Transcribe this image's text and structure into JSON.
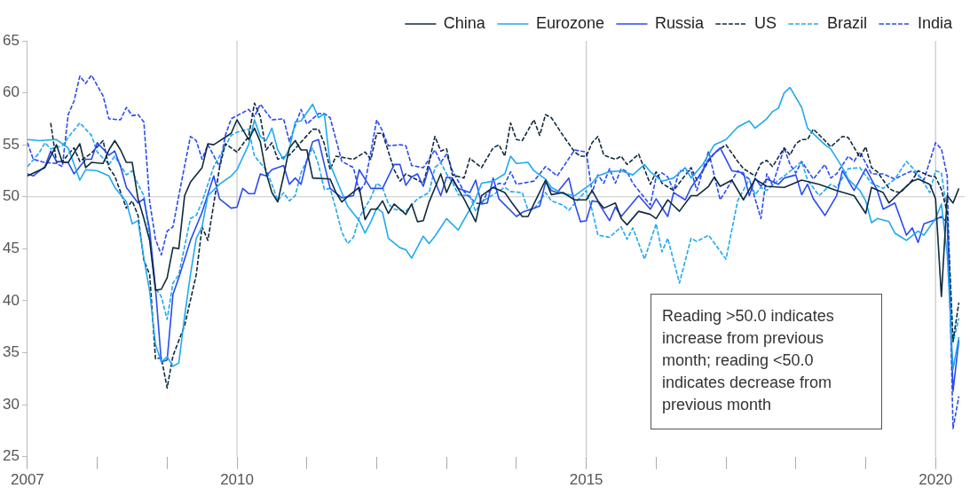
{
  "chart_data": {
    "type": "line",
    "xlim": [
      "2007-01",
      "2020-06"
    ],
    "ylim": [
      25,
      65
    ],
    "xticks": [
      {
        "value": "2007",
        "label": "2007"
      },
      {
        "value": "2008",
        "label": null
      },
      {
        "value": "2009",
        "label": null
      },
      {
        "value": "2010",
        "label": "2010"
      },
      {
        "value": "2011",
        "label": null
      },
      {
        "value": "2012",
        "label": null
      },
      {
        "value": "2013",
        "label": null
      },
      {
        "value": "2014",
        "label": null
      },
      {
        "value": "2015",
        "label": "2015"
      },
      {
        "value": "2016",
        "label": null
      },
      {
        "value": "2017",
        "label": null
      },
      {
        "value": "2018",
        "label": null
      },
      {
        "value": "2019",
        "label": null
      },
      {
        "value": "2020",
        "label": "2020"
      }
    ],
    "yticks": [
      25,
      30,
      35,
      40,
      45,
      50,
      55,
      60,
      65
    ],
    "grid": false,
    "legend": "top right",
    "marker": "none",
    "ref_lines": [
      {
        "axis": "y",
        "value": 50,
        "color": "#c8c8c8"
      },
      {
        "axis": "x",
        "value": "2010",
        "color": "#c8c8c8"
      },
      {
        "axis": "x",
        "value": "2015",
        "color": "#c8c8c8"
      },
      {
        "axis": "x",
        "value": "2020",
        "color": "#c8c8c8"
      }
    ],
    "annotations": [
      "Reading >50.0 indicates increase from previous month; reading <50.0 indicates decrease from previous month"
    ],
    "series": [
      {
        "name": "China",
        "color": "#0f2a3d",
        "line_style": "solid",
        "x": [
          "2007-01",
          "2007-04",
          "2007-06",
          "2007-07",
          "2007-08",
          "2007-10",
          "2007-11",
          "2007-12",
          "2008-02",
          "2008-03",
          "2008-04",
          "2008-05",
          "2008-06",
          "2008-07",
          "2008-08",
          "2008-09",
          "2008-10",
          "2008-11",
          "2008-12",
          "2009-01",
          "2009-02",
          "2009-03",
          "2009-04",
          "2009-05",
          "2009-07",
          "2009-08",
          "2009-09",
          "2009-12",
          "2010-01",
          "2010-03",
          "2010-04",
          "2010-05",
          "2010-06",
          "2010-07",
          "2010-08",
          "2010-09",
          "2010-10",
          "2010-11",
          "2010-12",
          "2011-01",
          "2011-02",
          "2011-05",
          "2011-06",
          "2011-07",
          "2011-08",
          "2011-10",
          "2011-11",
          "2011-12",
          "2012-01",
          "2012-02",
          "2012-03",
          "2012-04",
          "2012-06",
          "2012-07",
          "2012-08",
          "2012-09",
          "2012-10",
          "2012-12",
          "2013-01",
          "2013-02",
          "2013-04",
          "2013-06",
          "2013-07",
          "2013-09",
          "2013-11",
          "2013-12",
          "2014-02",
          "2014-03",
          "2014-04",
          "2014-06",
          "2014-07",
          "2014-09",
          "2014-11",
          "2015-01",
          "2015-02",
          "2015-03",
          "2015-04",
          "2015-06",
          "2015-07",
          "2015-08",
          "2015-10",
          "2015-12",
          "2016-01",
          "2016-03",
          "2016-05",
          "2016-07",
          "2016-08",
          "2016-10",
          "2016-11",
          "2016-12",
          "2017-02",
          "2017-04",
          "2017-06",
          "2017-08",
          "2017-11",
          "2018-02",
          "2018-05",
          "2018-08",
          "2018-11",
          "2019-01",
          "2019-02",
          "2019-04",
          "2019-05",
          "2019-07",
          "2019-09",
          "2019-10",
          "2019-12",
          "2020-01",
          "2020-02",
          "2020-03",
          "2020-04",
          "2020-05"
        ],
        "values": [
          52.0,
          52.8,
          55.0,
          53.3,
          53.3,
          55.1,
          52.8,
          53.3,
          53.2,
          54.5,
          55.4,
          54.5,
          53.3,
          53.3,
          49.8,
          47.9,
          45.8,
          41.0,
          41.1,
          42.2,
          45.1,
          45.0,
          50.1,
          51.4,
          52.8,
          55.1,
          55.0,
          56.1,
          57.4,
          55.5,
          56.6,
          55.3,
          52.3,
          50.4,
          49.5,
          52.0,
          54.7,
          55.4,
          54.5,
          54.5,
          51.8,
          51.7,
          50.4,
          49.5,
          50.0,
          50.9,
          47.8,
          48.8,
          48.8,
          49.6,
          48.4,
          49.3,
          48.3,
          49.3,
          47.6,
          47.7,
          49.5,
          52.2,
          50.4,
          51.7,
          49.8,
          47.6,
          50.1,
          50.9,
          50.4,
          49.6,
          48.1,
          48.1,
          49.3,
          51.6,
          50.2,
          50.4,
          49.7,
          49.7,
          50.6,
          49.6,
          48.9,
          49.4,
          47.9,
          47.3,
          48.6,
          48.3,
          47.9,
          49.7,
          48.6,
          50.1,
          50.1,
          51.0,
          51.9,
          51.0,
          51.6,
          49.7,
          51.7,
          51.0,
          50.9,
          51.6,
          51.2,
          50.6,
          50.1,
          48.4,
          50.9,
          50.4,
          49.4,
          50.5,
          51.5,
          51.7,
          51.2,
          49.8,
          40.4,
          50.1,
          49.4,
          50.8
        ]
      },
      {
        "name": "Eurozone",
        "color": "#1fa9f0",
        "line_style": "solid",
        "x": [
          "2007-01",
          "2007-03",
          "2007-06",
          "2007-08",
          "2007-10",
          "2007-11",
          "2008-01",
          "2008-03",
          "2008-04",
          "2008-06",
          "2008-07",
          "2008-08",
          "2008-09",
          "2008-10",
          "2008-11",
          "2008-12",
          "2009-01",
          "2009-02",
          "2009-03",
          "2009-04",
          "2009-05",
          "2009-06",
          "2009-07",
          "2009-08",
          "2009-10",
          "2009-12",
          "2010-01",
          "2010-03",
          "2010-04",
          "2010-05",
          "2010-06",
          "2010-07",
          "2010-08",
          "2010-09",
          "2010-10",
          "2010-11",
          "2010-12",
          "2011-02",
          "2011-03",
          "2011-04",
          "2011-05",
          "2011-07",
          "2011-08",
          "2011-10",
          "2011-11",
          "2011-12",
          "2012-01",
          "2012-02",
          "2012-03",
          "2012-05",
          "2012-06",
          "2012-07",
          "2012-09",
          "2012-10",
          "2012-11",
          "2013-01",
          "2013-03",
          "2013-06",
          "2013-07",
          "2013-09",
          "2013-11",
          "2013-12",
          "2014-01",
          "2014-03",
          "2014-04",
          "2014-06",
          "2014-07",
          "2014-09",
          "2014-11",
          "2015-01",
          "2015-02",
          "2015-03",
          "2015-05",
          "2015-07",
          "2015-09",
          "2015-11",
          "2015-12",
          "2016-02",
          "2016-04",
          "2016-06",
          "2016-07",
          "2016-09",
          "2016-11",
          "2017-01",
          "2017-03",
          "2017-05",
          "2017-06",
          "2017-08",
          "2017-09",
          "2017-10",
          "2017-11",
          "2017-12",
          "2018-02",
          "2018-03",
          "2018-06",
          "2018-07",
          "2018-09",
          "2018-10",
          "2018-12",
          "2019-01",
          "2019-02",
          "2019-03",
          "2019-05",
          "2019-06",
          "2019-08",
          "2019-10",
          "2019-11",
          "2020-01",
          "2020-02",
          "2020-03",
          "2020-04",
          "2020-05"
        ],
        "values": [
          55.5,
          55.4,
          55.5,
          54.7,
          51.6,
          52.6,
          52.5,
          52.0,
          50.9,
          49.5,
          47.4,
          47.7,
          44.1,
          40.9,
          35.8,
          34.1,
          34.6,
          33.7,
          34.0,
          38.5,
          42.5,
          46.0,
          47.1,
          50.1,
          51.2,
          52.0,
          52.6,
          55.0,
          57.4,
          55.8,
          55.4,
          56.6,
          54.5,
          53.6,
          54.6,
          57.2,
          57.3,
          58.9,
          57.6,
          58.0,
          53.1,
          50.4,
          49.1,
          47.7,
          46.5,
          47.6,
          48.9,
          48.5,
          46.0,
          45.1,
          44.9,
          44.1,
          46.2,
          45.5,
          46.2,
          47.9,
          46.8,
          49.8,
          51.3,
          51.5,
          52.2,
          53.9,
          53.2,
          53.3,
          52.5,
          51.7,
          50.9,
          50.3,
          50.1,
          50.9,
          51.3,
          52.0,
          52.4,
          52.5,
          52.1,
          53.1,
          52.4,
          51.5,
          51.8,
          52.8,
          51.8,
          53.1,
          55.0,
          55.5,
          56.7,
          57.3,
          56.6,
          57.5,
          58.2,
          58.5,
          60.0,
          60.5,
          58.6,
          56.6,
          55.0,
          54.6,
          52.8,
          51.7,
          50.6,
          49.6,
          47.5,
          47.9,
          47.6,
          46.5,
          45.8,
          46.7,
          46.3,
          47.9,
          49.3,
          44.5,
          33.4,
          36.5
        ]
      },
      {
        "name": "Russia",
        "color": "#2a4bf0",
        "line_style": "solid",
        "x": [
          "2007-01",
          "2007-02",
          "2007-04",
          "2007-05",
          "2007-06",
          "2007-08",
          "2007-09",
          "2007-11",
          "2007-12",
          "2008-01",
          "2008-03",
          "2008-04",
          "2008-05",
          "2008-06",
          "2008-08",
          "2008-09",
          "2008-10",
          "2008-11",
          "2008-12",
          "2009-01",
          "2009-02",
          "2009-03",
          "2009-05",
          "2009-07",
          "2009-09",
          "2009-10",
          "2009-12",
          "2010-01",
          "2010-02",
          "2010-03",
          "2010-04",
          "2010-05",
          "2010-06",
          "2010-07",
          "2010-09",
          "2010-10",
          "2010-11",
          "2010-12",
          "2011-01",
          "2011-02",
          "2011-03",
          "2011-04",
          "2011-05",
          "2011-07",
          "2011-09",
          "2011-10",
          "2011-12",
          "2012-02",
          "2012-04",
          "2012-05",
          "2012-06",
          "2012-07",
          "2012-08",
          "2012-09",
          "2012-10",
          "2012-12",
          "2013-01",
          "2013-02",
          "2013-03",
          "2013-05",
          "2013-06",
          "2013-07",
          "2013-08",
          "2013-09",
          "2013-10",
          "2014-01",
          "2014-02",
          "2014-05",
          "2014-06",
          "2014-07",
          "2014-08",
          "2014-10",
          "2014-11",
          "2014-12",
          "2015-01",
          "2015-02",
          "2015-03",
          "2015-05",
          "2015-06",
          "2015-07",
          "2015-10",
          "2015-12",
          "2016-01",
          "2016-03",
          "2016-04",
          "2016-06",
          "2016-07",
          "2016-09",
          "2016-10",
          "2016-12",
          "2017-02",
          "2017-04",
          "2017-05",
          "2017-06",
          "2017-07",
          "2017-08",
          "2017-10",
          "2017-11",
          "2018-01",
          "2018-02",
          "2018-03",
          "2018-04",
          "2018-06",
          "2018-08",
          "2018-09",
          "2018-11",
          "2019-01",
          "2019-03",
          "2019-04",
          "2019-06",
          "2019-08",
          "2019-09",
          "2019-10",
          "2019-11",
          "2020-01",
          "2020-02",
          "2020-03",
          "2020-04",
          "2020-05"
        ],
        "values": [
          52.2,
          52.0,
          52.9,
          54.4,
          53.4,
          53.3,
          52.2,
          53.6,
          53.6,
          55.2,
          54.0,
          54.4,
          52.9,
          50.9,
          49.4,
          49.8,
          46.8,
          41.2,
          34.1,
          34.3,
          40.6,
          42.2,
          45.8,
          48.5,
          52.0,
          49.8,
          48.9,
          49.0,
          50.8,
          50.3,
          50.3,
          52.2,
          52.0,
          52.6,
          53.0,
          51.2,
          51.8,
          51.2,
          53.5,
          55.3,
          55.5,
          53.1,
          50.8,
          49.9,
          50.1,
          52.6,
          50.8,
          50.8,
          53.1,
          53.1,
          51.1,
          51.9,
          52.2,
          51.0,
          52.9,
          50.1,
          51.9,
          51.8,
          50.8,
          50.4,
          51.6,
          49.3,
          49.4,
          51.8,
          49.8,
          48.1,
          48.5,
          49.1,
          51.4,
          50.6,
          50.4,
          51.8,
          49.4,
          47.6,
          47.7,
          49.6,
          49.5,
          47.7,
          49.0,
          48.1,
          50.1,
          48.8,
          49.8,
          48.1,
          50.4,
          49.7,
          50.9,
          52.5,
          53.6,
          54.7,
          52.5,
          52.3,
          50.1,
          51.8,
          51.0,
          51.7,
          51.2,
          51.8,
          52.1,
          50.2,
          51.2,
          49.8,
          48.2,
          50.1,
          52.5,
          50.6,
          52.7,
          50.6,
          48.8,
          49.4,
          46.3,
          47.0,
          45.6,
          47.4,
          47.8,
          48.1,
          47.5,
          31.3,
          36.2
        ]
      },
      {
        "name": "US",
        "color": "#0f2a3d",
        "line_style": "dashed",
        "x": [
          "2007-05",
          "2007-06",
          "2007-07",
          "2007-09",
          "2007-10",
          "2007-12",
          "2008-02",
          "2008-03",
          "2008-04",
          "2008-06",
          "2008-07",
          "2008-08",
          "2008-09",
          "2008-10",
          "2008-11",
          "2008-12",
          "2009-01",
          "2009-02",
          "2009-04",
          "2009-06",
          "2009-07",
          "2009-08",
          "2009-10",
          "2009-11",
          "2010-01",
          "2010-03",
          "2010-04",
          "2010-05",
          "2010-06",
          "2010-07",
          "2010-08",
          "2010-10",
          "2011-02",
          "2011-03",
          "2011-04",
          "2011-05",
          "2011-06",
          "2011-09",
          "2011-11",
          "2011-12",
          "2012-01",
          "2012-02",
          "2012-04",
          "2012-05",
          "2012-06",
          "2012-09",
          "2012-10",
          "2012-11",
          "2012-12",
          "2013-01",
          "2013-02",
          "2013-04",
          "2013-05",
          "2013-07",
          "2013-09",
          "2013-10",
          "2013-11",
          "2013-12",
          "2014-01",
          "2014-02",
          "2014-04",
          "2014-05",
          "2014-06",
          "2014-07",
          "2014-09",
          "2014-11",
          "2014-12",
          "2015-01",
          "2015-02",
          "2015-03",
          "2015-04",
          "2015-06",
          "2015-07",
          "2015-08",
          "2015-10",
          "2015-12",
          "2016-01",
          "2016-02",
          "2016-04",
          "2016-07",
          "2016-08",
          "2016-10",
          "2016-11",
          "2017-01",
          "2017-03",
          "2017-04",
          "2017-06",
          "2017-07",
          "2017-08",
          "2017-09",
          "2017-11",
          "2017-12",
          "2018-01",
          "2018-02",
          "2018-03",
          "2018-04",
          "2018-06",
          "2018-07",
          "2018-09",
          "2018-10",
          "2018-12",
          "2019-01",
          "2019-02",
          "2019-03",
          "2019-05",
          "2019-06",
          "2019-07",
          "2019-09",
          "2019-10",
          "2019-12",
          "2020-01",
          "2020-02",
          "2020-03",
          "2020-04",
          "2020-05"
        ],
        "values": [
          57.1,
          53.3,
          53.4,
          54.7,
          53.4,
          54.2,
          55.4,
          52.8,
          52.0,
          48.9,
          49.6,
          48.2,
          43.9,
          42.5,
          34.4,
          34.5,
          31.6,
          34.7,
          37.6,
          42.5,
          47.1,
          45.8,
          52.8,
          55.1,
          54.3,
          55.8,
          59.0,
          57.7,
          54.5,
          55.2,
          53.6,
          54.0,
          56.5,
          56.5,
          55.1,
          52.6,
          53.9,
          53.6,
          54.3,
          53.6,
          56.1,
          56.1,
          52.6,
          51.5,
          52.2,
          51.3,
          53.3,
          55.8,
          54.4,
          54.6,
          52.1,
          51.8,
          53.7,
          52.8,
          54.7,
          55.0,
          53.9,
          57.1,
          55.5,
          55.4,
          57.4,
          55.9,
          57.9,
          57.6,
          55.9,
          54.3,
          53.9,
          53.9,
          55.2,
          55.8,
          54.0,
          53.6,
          53.9,
          53.1,
          54.1,
          51.2,
          52.4,
          51.3,
          50.6,
          52.8,
          51.6,
          53.4,
          54.2,
          55.0,
          53.4,
          52.7,
          52.0,
          53.2,
          53.5,
          52.9,
          54.7,
          54.0,
          55.1,
          55.5,
          55.5,
          56.5,
          55.4,
          54.8,
          55.8,
          55.7,
          53.8,
          54.8,
          52.8,
          52.4,
          50.8,
          50.5,
          50.4,
          51.6,
          52.5,
          52.0,
          51.9,
          50.7,
          48.5,
          36.1,
          39.8
        ]
      },
      {
        "name": "Brazil",
        "color": "#1fa9f0",
        "line_style": "dashed",
        "x": [
          "2007-01",
          "2007-03",
          "2007-04",
          "2007-05",
          "2007-07",
          "2007-08",
          "2007-10",
          "2007-12",
          "2008-01",
          "2008-03",
          "2008-04",
          "2008-06",
          "2008-07",
          "2008-08",
          "2008-09",
          "2008-10",
          "2008-11",
          "2008-12",
          "2009-01",
          "2009-02",
          "2009-03",
          "2009-05",
          "2009-06",
          "2009-07",
          "2009-09",
          "2009-12",
          "2010-01",
          "2010-03",
          "2010-04",
          "2010-06",
          "2010-07",
          "2010-08",
          "2010-09",
          "2010-10",
          "2010-11",
          "2010-12",
          "2011-02",
          "2011-03",
          "2011-04",
          "2011-05",
          "2011-06",
          "2011-07",
          "2011-08",
          "2011-09",
          "2011-10",
          "2011-12",
          "2012-01",
          "2012-02",
          "2012-03",
          "2012-04",
          "2012-06",
          "2012-08",
          "2012-10",
          "2012-11",
          "2012-12",
          "2013-01",
          "2013-02",
          "2013-03",
          "2013-05",
          "2013-06",
          "2013-07",
          "2013-09",
          "2013-11",
          "2013-12",
          "2014-02",
          "2014-03",
          "2014-04",
          "2014-06",
          "2014-07",
          "2014-09",
          "2014-10",
          "2015-01",
          "2015-02",
          "2015-03",
          "2015-05",
          "2015-07",
          "2015-08",
          "2015-09",
          "2015-11",
          "2016-01",
          "2016-02",
          "2016-03",
          "2016-05",
          "2016-07",
          "2016-08",
          "2016-10",
          "2017-01",
          "2017-03",
          "2017-05",
          "2017-06",
          "2017-07",
          "2017-08",
          "2017-10",
          "2017-11",
          "2018-01",
          "2018-02",
          "2018-03",
          "2018-05",
          "2018-07",
          "2018-08",
          "2018-10",
          "2018-12",
          "2019-02",
          "2019-04",
          "2019-06",
          "2019-08",
          "2019-10",
          "2019-12",
          "2020-01",
          "2020-02",
          "2020-03",
          "2020-04",
          "2020-05"
        ],
        "values": [
          52.9,
          54.2,
          55.2,
          54.6,
          54.9,
          55.7,
          57.1,
          55.9,
          54.3,
          53.1,
          53.9,
          52.1,
          52.5,
          51.2,
          50.1,
          46.0,
          41.2,
          40.4,
          38.2,
          41.7,
          42.5,
          47.9,
          48.2,
          49.5,
          52.9,
          55.9,
          56.2,
          56.5,
          53.9,
          52.6,
          51.2,
          49.6,
          50.4,
          49.6,
          50.1,
          52.3,
          54.7,
          53.1,
          50.7,
          50.8,
          48.8,
          46.6,
          45.5,
          46.1,
          48.0,
          49.9,
          51.3,
          50.9,
          49.3,
          48.8,
          48.6,
          49.8,
          50.4,
          52.8,
          53.3,
          52.2,
          51.4,
          50.2,
          50.1,
          48.6,
          49.5,
          50.2,
          50.9,
          50.5,
          50.4,
          48.7,
          48.8,
          50.4,
          49.6,
          49.2,
          48.7,
          50.6,
          48.7,
          46.3,
          46.1,
          47.1,
          45.9,
          47.0,
          44.0,
          47.4,
          44.7,
          46.0,
          41.7,
          46.0,
          45.7,
          46.3,
          44.0,
          49.6,
          51.7,
          50.2,
          50.9,
          50.6,
          51.6,
          52.0,
          52.9,
          53.4,
          51.6,
          50.1,
          51.2,
          50.9,
          52.7,
          52.8,
          51.3,
          50.8,
          51.7,
          53.4,
          52.2,
          50.4,
          52.5,
          52.3,
          48.4,
          36.0,
          38.3
        ]
      },
      {
        "name": "India",
        "color": "#2a4bf0",
        "line_style": "dashed",
        "x": [
          "2007-01",
          "2007-02",
          "2007-04",
          "2007-06",
          "2007-07",
          "2007-08",
          "2007-09",
          "2007-10",
          "2007-11",
          "2007-12",
          "2008-02",
          "2008-03",
          "2008-05",
          "2008-06",
          "2008-07",
          "2008-08",
          "2008-09",
          "2008-10",
          "2008-11",
          "2008-12",
          "2009-01",
          "2009-02",
          "2009-03",
          "2009-05",
          "2009-06",
          "2009-07",
          "2009-08",
          "2009-10",
          "2009-11",
          "2009-12",
          "2010-03",
          "2010-04",
          "2010-05",
          "2010-07",
          "2010-09",
          "2010-10",
          "2010-12",
          "2011-01",
          "2011-03",
          "2011-04",
          "2011-05",
          "2011-07",
          "2011-09",
          "2011-10",
          "2011-11",
          "2012-01",
          "2012-02",
          "2012-03",
          "2012-05",
          "2012-06",
          "2012-07",
          "2012-09",
          "2012-10",
          "2012-11",
          "2012-12",
          "2013-01",
          "2013-02",
          "2013-04",
          "2013-06",
          "2013-07",
          "2013-08",
          "2013-10",
          "2013-11",
          "2013-12",
          "2014-01",
          "2014-04",
          "2014-06",
          "2014-08",
          "2014-11",
          "2015-01",
          "2015-02",
          "2015-03",
          "2015-04",
          "2015-05",
          "2015-06",
          "2015-07",
          "2015-08",
          "2015-09",
          "2015-12",
          "2016-01",
          "2016-02",
          "2016-03",
          "2016-04",
          "2016-05",
          "2016-07",
          "2016-08",
          "2016-10",
          "2016-11",
          "2016-12",
          "2017-01",
          "2017-03",
          "2017-05",
          "2017-07",
          "2017-08",
          "2017-09",
          "2017-11",
          "2017-12",
          "2018-01",
          "2018-02",
          "2018-04",
          "2018-06",
          "2018-07",
          "2018-08",
          "2018-10",
          "2018-11",
          "2018-12",
          "2019-02",
          "2019-04",
          "2019-06",
          "2019-07",
          "2019-09",
          "2019-11",
          "2020-01",
          "2020-02",
          "2020-03",
          "2020-04",
          "2020-05"
        ],
        "values": [
          55.2,
          53.6,
          53.3,
          53.2,
          52.9,
          57.9,
          59.2,
          61.6,
          60.9,
          61.7,
          59.7,
          57.5,
          57.4,
          58.6,
          57.8,
          57.9,
          57.2,
          49.5,
          45.9,
          44.4,
          46.7,
          47.1,
          50.1,
          55.8,
          55.4,
          53.6,
          55.0,
          52.9,
          55.9,
          57.5,
          58.4,
          57.7,
          58.9,
          57.4,
          57.5,
          55.3,
          58.4,
          57.0,
          58.0,
          58.0,
          57.6,
          53.4,
          52.8,
          50.5,
          51.3,
          57.4,
          56.3,
          54.9,
          55.0,
          54.9,
          53.0,
          52.8,
          53.6,
          54.5,
          53.3,
          54.1,
          52.5,
          50.5,
          49.4,
          49.3,
          50.4,
          51.3,
          51.2,
          52.4,
          51.2,
          51.5,
          52.9,
          52.0,
          54.5,
          54.3,
          50.4,
          52.1,
          51.3,
          52.7,
          51.3,
          52.7,
          52.4,
          51.3,
          49.2,
          51.9,
          52.3,
          51.9,
          50.6,
          52.5,
          52.5,
          50.6,
          54.4,
          52.0,
          49.7,
          50.6,
          52.5,
          51.7,
          47.9,
          52.2,
          51.1,
          54.7,
          53.1,
          52.3,
          53.4,
          51.7,
          53.1,
          51.8,
          52.2,
          53.9,
          53.4,
          54.3,
          52.2,
          52.2,
          51.7,
          52.0,
          52.5,
          51.6,
          55.2,
          54.6,
          52.0,
          27.7,
          30.8
        ]
      }
    ]
  }
}
